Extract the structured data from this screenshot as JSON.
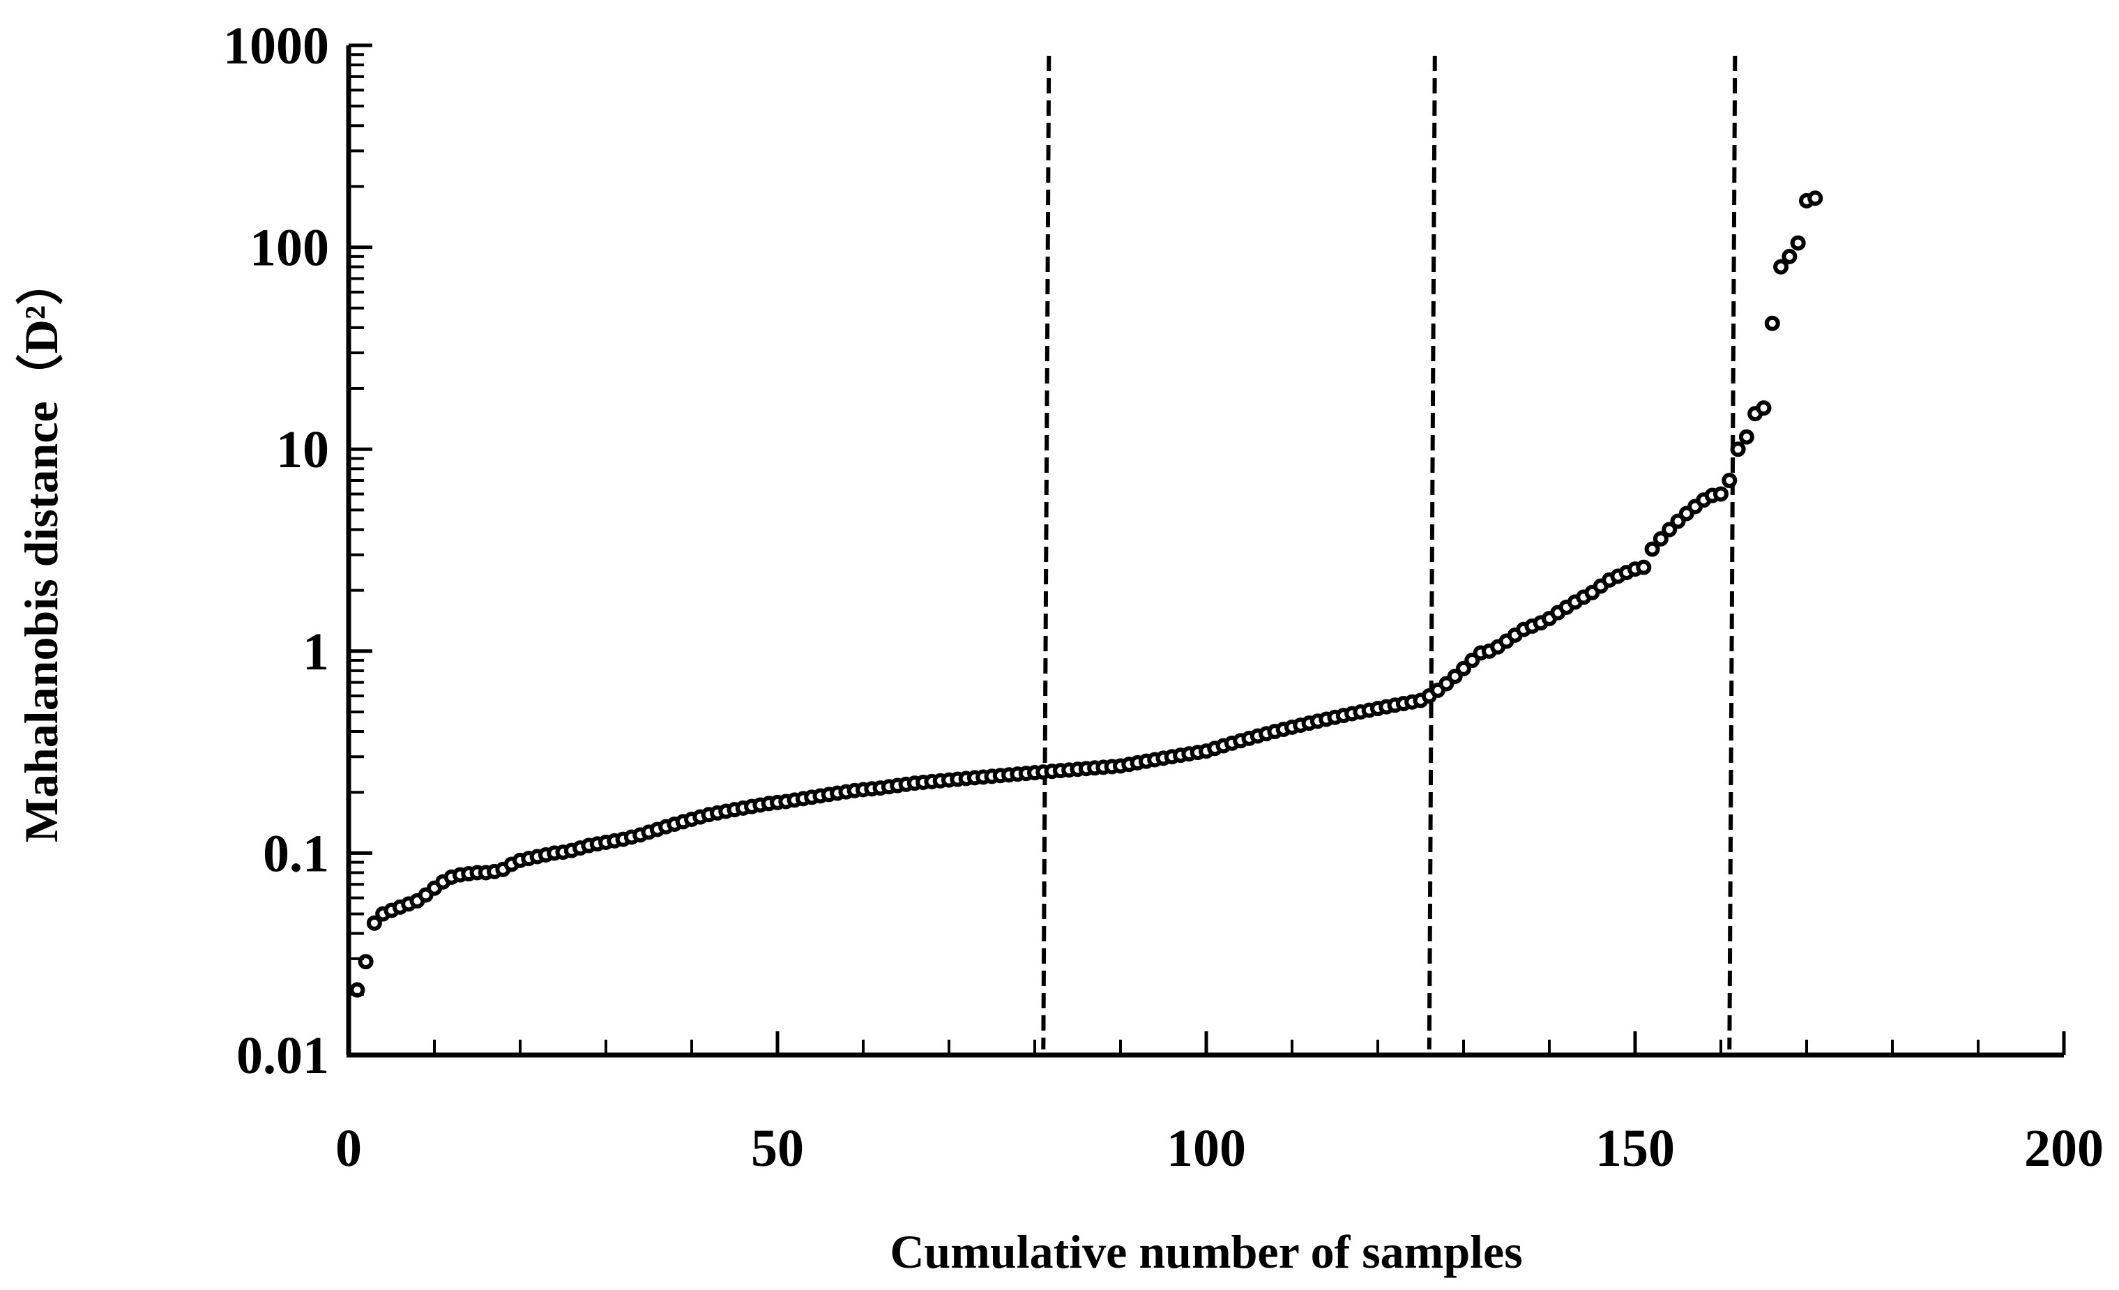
{
  "chart_data": {
    "type": "scatter",
    "title": "",
    "xlabel": "Cumulative number of samples",
    "ylabel": "Mahalanobis distance（D²）",
    "xlim": [
      0,
      200
    ],
    "ylim": [
      0.01,
      1000
    ],
    "yscale": "log",
    "x_ticks": [
      0,
      50,
      100,
      150,
      200
    ],
    "x_tick_labels": [
      "0",
      "50",
      "100",
      "150",
      "200"
    ],
    "y_ticks": [
      0.01,
      0.1,
      1,
      10,
      100,
      1000
    ],
    "y_tick_labels": [
      "0.01",
      "0.1",
      "1",
      "10",
      "100",
      "1000"
    ],
    "grid": false,
    "marker_color": "#000000",
    "reference_lines_x": [
      81,
      126,
      161
    ],
    "series": [
      {
        "points": [
          [
            1,
            0.021
          ],
          [
            2,
            0.029
          ],
          [
            3,
            0.045
          ],
          [
            4,
            0.05
          ],
          [
            5,
            0.052
          ],
          [
            6,
            0.054
          ],
          [
            7,
            0.056
          ],
          [
            8,
            0.058
          ],
          [
            9,
            0.062
          ],
          [
            10,
            0.067
          ],
          [
            11,
            0.072
          ],
          [
            12,
            0.076
          ],
          [
            13,
            0.078
          ],
          [
            14,
            0.079
          ],
          [
            15,
            0.08
          ],
          [
            16,
            0.08
          ],
          [
            17,
            0.081
          ],
          [
            18,
            0.083
          ],
          [
            19,
            0.088
          ],
          [
            20,
            0.092
          ],
          [
            21,
            0.094
          ],
          [
            22,
            0.096
          ],
          [
            23,
            0.098
          ],
          [
            24,
            0.1
          ],
          [
            25,
            0.101
          ],
          [
            26,
            0.103
          ],
          [
            27,
            0.106
          ],
          [
            28,
            0.109
          ],
          [
            29,
            0.111
          ],
          [
            30,
            0.113
          ],
          [
            31,
            0.115
          ],
          [
            32,
            0.117
          ],
          [
            33,
            0.12
          ],
          [
            34,
            0.123
          ],
          [
            35,
            0.127
          ],
          [
            36,
            0.131
          ],
          [
            37,
            0.135
          ],
          [
            38,
            0.139
          ],
          [
            39,
            0.143
          ],
          [
            40,
            0.147
          ],
          [
            41,
            0.151
          ],
          [
            42,
            0.155
          ],
          [
            43,
            0.158
          ],
          [
            44,
            0.161
          ],
          [
            45,
            0.164
          ],
          [
            46,
            0.167
          ],
          [
            47,
            0.17
          ],
          [
            48,
            0.173
          ],
          [
            49,
            0.176
          ],
          [
            50,
            0.178
          ],
          [
            51,
            0.18
          ],
          [
            52,
            0.183
          ],
          [
            53,
            0.186
          ],
          [
            54,
            0.189
          ],
          [
            55,
            0.192
          ],
          [
            56,
            0.195
          ],
          [
            57,
            0.198
          ],
          [
            58,
            0.201
          ],
          [
            59,
            0.204
          ],
          [
            60,
            0.206
          ],
          [
            61,
            0.208
          ],
          [
            62,
            0.21
          ],
          [
            63,
            0.213
          ],
          [
            64,
            0.216
          ],
          [
            65,
            0.219
          ],
          [
            66,
            0.222
          ],
          [
            67,
            0.224
          ],
          [
            68,
            0.226
          ],
          [
            69,
            0.228
          ],
          [
            70,
            0.23
          ],
          [
            71,
            0.232
          ],
          [
            72,
            0.234
          ],
          [
            73,
            0.236
          ],
          [
            74,
            0.238
          ],
          [
            75,
            0.24
          ],
          [
            76,
            0.242
          ],
          [
            77,
            0.244
          ],
          [
            78,
            0.246
          ],
          [
            79,
            0.248
          ],
          [
            80,
            0.25
          ],
          [
            81,
            0.252
          ],
          [
            82,
            0.254
          ],
          [
            83,
            0.256
          ],
          [
            84,
            0.258
          ],
          [
            85,
            0.26
          ],
          [
            86,
            0.262
          ],
          [
            87,
            0.264
          ],
          [
            88,
            0.266
          ],
          [
            89,
            0.268
          ],
          [
            90,
            0.27
          ],
          [
            91,
            0.275
          ],
          [
            92,
            0.28
          ],
          [
            93,
            0.285
          ],
          [
            94,
            0.29
          ],
          [
            95,
            0.295
          ],
          [
            96,
            0.3
          ],
          [
            97,
            0.305
          ],
          [
            98,
            0.31
          ],
          [
            99,
            0.315
          ],
          [
            100,
            0.32
          ],
          [
            101,
            0.33
          ],
          [
            102,
            0.34
          ],
          [
            103,
            0.35
          ],
          [
            104,
            0.36
          ],
          [
            105,
            0.37
          ],
          [
            106,
            0.38
          ],
          [
            107,
            0.39
          ],
          [
            108,
            0.4
          ],
          [
            109,
            0.41
          ],
          [
            110,
            0.42
          ],
          [
            111,
            0.43
          ],
          [
            112,
            0.44
          ],
          [
            113,
            0.45
          ],
          [
            114,
            0.46
          ],
          [
            115,
            0.47
          ],
          [
            116,
            0.48
          ],
          [
            117,
            0.49
          ],
          [
            118,
            0.5
          ],
          [
            119,
            0.51
          ],
          [
            120,
            0.52
          ],
          [
            121,
            0.53
          ],
          [
            122,
            0.54
          ],
          [
            123,
            0.55
          ],
          [
            124,
            0.56
          ],
          [
            125,
            0.57
          ],
          [
            126,
            0.6
          ],
          [
            127,
            0.64
          ],
          [
            128,
            0.69
          ],
          [
            129,
            0.75
          ],
          [
            130,
            0.82
          ],
          [
            131,
            0.9
          ],
          [
            132,
            0.98
          ],
          [
            133,
            1.0
          ],
          [
            134,
            1.05
          ],
          [
            135,
            1.12
          ],
          [
            136,
            1.2
          ],
          [
            137,
            1.28
          ],
          [
            138,
            1.33
          ],
          [
            139,
            1.38
          ],
          [
            140,
            1.45
          ],
          [
            141,
            1.55
          ],
          [
            142,
            1.65
          ],
          [
            143,
            1.75
          ],
          [
            144,
            1.85
          ],
          [
            145,
            1.95
          ],
          [
            146,
            2.1
          ],
          [
            147,
            2.25
          ],
          [
            148,
            2.35
          ],
          [
            149,
            2.45
          ],
          [
            150,
            2.55
          ],
          [
            151,
            2.6
          ],
          [
            152,
            3.2
          ],
          [
            153,
            3.6
          ],
          [
            154,
            4.0
          ],
          [
            155,
            4.4
          ],
          [
            156,
            4.8
          ],
          [
            157,
            5.2
          ],
          [
            158,
            5.6
          ],
          [
            159,
            5.9
          ],
          [
            160,
            6.0
          ],
          [
            161,
            7.0
          ],
          [
            162,
            10.0
          ],
          [
            163,
            11.5
          ],
          [
            164,
            15.0
          ],
          [
            165,
            16.0
          ],
          [
            166,
            42.0
          ],
          [
            167,
            80.0
          ],
          [
            168,
            90.0
          ],
          [
            169,
            105.0
          ],
          [
            170,
            170.0
          ],
          [
            171,
            175.0
          ]
        ]
      }
    ]
  }
}
